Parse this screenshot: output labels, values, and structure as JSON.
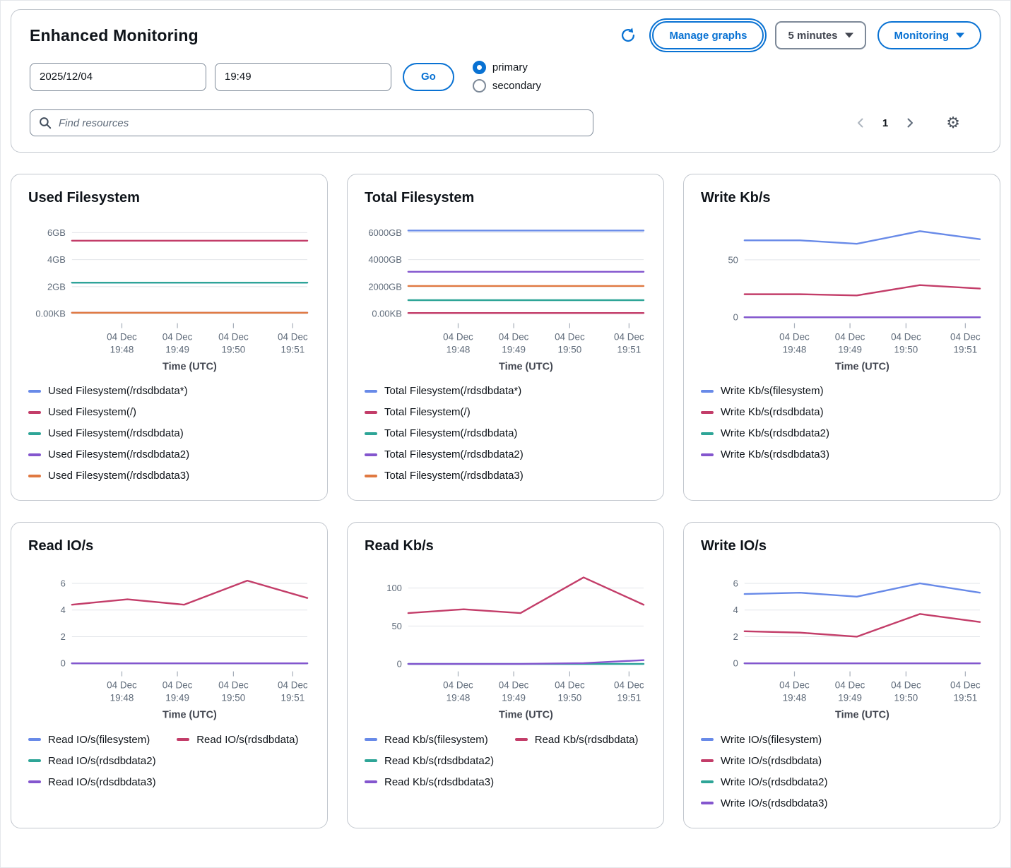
{
  "header": {
    "title": "Enhanced Monitoring",
    "manage_graphs_label": "Manage graphs",
    "interval_label": "5 minutes",
    "monitoring_label": "Monitoring",
    "date_value": "2025/12/04",
    "time_value": "19:49",
    "go_label": "Go",
    "radio_primary": "primary",
    "radio_secondary": "secondary",
    "search_placeholder": "Find resources",
    "page_number": "1"
  },
  "colors": {
    "accent": "#0972d3",
    "palette_blue": "#688ae8",
    "palette_red": "#c33d69",
    "palette_teal": "#2ea597",
    "palette_purple": "#8456ce",
    "palette_orange": "#e07941"
  },
  "chart_data": [
    {
      "type": "line",
      "title": "Used Filesystem",
      "xlabel": "Time (UTC)",
      "categories": [
        "04 Dec 19:48",
        "04 Dec 19:49",
        "04 Dec 19:50",
        "04 Dec 19:51"
      ],
      "ylim": [
        -0.6,
        6.7
      ],
      "yticks": [
        {
          "v": 0,
          "label": "0.00KB"
        },
        {
          "v": 2,
          "label": "2GB"
        },
        {
          "v": 4,
          "label": "4GB"
        },
        {
          "v": 6,
          "label": "6GB"
        }
      ],
      "grid": true,
      "legend_position": "bottom",
      "legend_pairs_first_row": false,
      "series": [
        {
          "name": "Used Filesystem(/rdsdbdata*)",
          "color": "#688ae8",
          "values": [
            2.3,
            2.3,
            2.3,
            2.3,
            2.3
          ]
        },
        {
          "name": "Used Filesystem(/)",
          "color": "#c33d69",
          "values": [
            5.4,
            5.4,
            5.4,
            5.4,
            5.4
          ]
        },
        {
          "name": "Used Filesystem(/rdsdbdata)",
          "color": "#2ea597",
          "values": [
            2.3,
            2.3,
            2.3,
            2.3,
            2.3
          ]
        },
        {
          "name": "Used Filesystem(/rdsdbdata2)",
          "color": "#8456ce",
          "values": [
            0.07,
            0.07,
            0.07,
            0.07,
            0.07
          ]
        },
        {
          "name": "Used Filesystem(/rdsdbdata3)",
          "color": "#e07941",
          "values": [
            0.07,
            0.07,
            0.07,
            0.07,
            0.07
          ]
        }
      ]
    },
    {
      "type": "line",
      "title": "Total Filesystem",
      "xlabel": "Time (UTC)",
      "categories": [
        "04 Dec 19:48",
        "04 Dec 19:49",
        "04 Dec 19:50",
        "04 Dec 19:51"
      ],
      "ylim": [
        -600,
        6700
      ],
      "yticks": [
        {
          "v": 0,
          "label": "0.00KB"
        },
        {
          "v": 2000,
          "label": "2000GB"
        },
        {
          "v": 4000,
          "label": "4000GB"
        },
        {
          "v": 6000,
          "label": "6000GB"
        }
      ],
      "grid": true,
      "legend_position": "bottom",
      "legend_pairs_first_row": false,
      "series": [
        {
          "name": "Total Filesystem(/rdsdbdata*)",
          "color": "#688ae8",
          "values": [
            6150,
            6150,
            6150,
            6150,
            6150
          ]
        },
        {
          "name": "Total Filesystem(/)",
          "color": "#c33d69",
          "values": [
            50,
            50,
            50,
            50,
            50
          ]
        },
        {
          "name": "Total Filesystem(/rdsdbdata)",
          "color": "#2ea597",
          "values": [
            1000,
            1000,
            1000,
            1000,
            1000
          ]
        },
        {
          "name": "Total Filesystem(/rdsdbdata2)",
          "color": "#8456ce",
          "values": [
            3100,
            3100,
            3100,
            3100,
            3100
          ]
        },
        {
          "name": "Total Filesystem(/rdsdbdata3)",
          "color": "#e07941",
          "values": [
            2050,
            2050,
            2050,
            2050,
            2050
          ]
        }
      ]
    },
    {
      "type": "line",
      "title": "Write Kb/s",
      "xlabel": "Time (UTC)",
      "categories": [
        "04 Dec 19:48",
        "04 Dec 19:49",
        "04 Dec 19:50",
        "04 Dec 19:51"
      ],
      "ylim": [
        -4,
        82
      ],
      "yticks": [
        {
          "v": 0,
          "label": "0"
        },
        {
          "v": 50,
          "label": "50"
        }
      ],
      "grid": true,
      "legend_position": "bottom",
      "legend_pairs_first_row": false,
      "series": [
        {
          "name": "Write Kb/s(filesystem)",
          "color": "#688ae8",
          "values": [
            67,
            67,
            64,
            75,
            68
          ]
        },
        {
          "name": "Write Kb/s(rdsdbdata)",
          "color": "#c33d69",
          "values": [
            20,
            20,
            19,
            28,
            25
          ]
        },
        {
          "name": "Write Kb/s(rdsdbdata2)",
          "color": "#2ea597",
          "values": [
            0,
            0,
            0,
            0,
            0
          ]
        },
        {
          "name": "Write Kb/s(rdsdbdata3)",
          "color": "#8456ce",
          "values": [
            0,
            0,
            0,
            0,
            0
          ]
        }
      ]
    },
    {
      "type": "line",
      "title": "Read IO/s",
      "xlabel": "Time (UTC)",
      "categories": [
        "04 Dec 19:48",
        "04 Dec 19:49",
        "04 Dec 19:50",
        "04 Dec 19:51"
      ],
      "ylim": [
        -0.5,
        6.9
      ],
      "yticks": [
        {
          "v": 0,
          "label": "0"
        },
        {
          "v": 2,
          "label": "2"
        },
        {
          "v": 4,
          "label": "4"
        },
        {
          "v": 6,
          "label": "6"
        }
      ],
      "grid": true,
      "legend_position": "bottom",
      "legend_pairs_first_row": true,
      "series": [
        {
          "name": "Read IO/s(filesystem)",
          "color": "#688ae8",
          "values": [
            0,
            0,
            0,
            0,
            0
          ]
        },
        {
          "name": "Read IO/s(rdsdbdata)",
          "color": "#c33d69",
          "values": [
            4.4,
            4.8,
            4.4,
            6.2,
            4.9
          ]
        },
        {
          "name": "Read IO/s(rdsdbdata2)",
          "color": "#2ea597",
          "values": [
            0,
            0,
            0,
            0,
            0
          ]
        },
        {
          "name": "Read IO/s(rdsdbdata3)",
          "color": "#8456ce",
          "values": [
            0,
            0,
            0,
            0,
            0
          ]
        }
      ]
    },
    {
      "type": "line",
      "title": "Read Kb/s",
      "xlabel": "Time (UTC)",
      "categories": [
        "04 Dec 19:48",
        "04 Dec 19:49",
        "04 Dec 19:50",
        "04 Dec 19:51"
      ],
      "ylim": [
        -8,
        122
      ],
      "yticks": [
        {
          "v": 0,
          "label": "0"
        },
        {
          "v": 50,
          "label": "50"
        },
        {
          "v": 100,
          "label": "100"
        }
      ],
      "grid": true,
      "legend_position": "bottom",
      "legend_pairs_first_row": true,
      "series": [
        {
          "name": "Read Kb/s(filesystem)",
          "color": "#688ae8",
          "values": [
            0,
            0,
            0,
            0,
            0
          ]
        },
        {
          "name": "Read Kb/s(rdsdbdata)",
          "color": "#c33d69",
          "values": [
            67,
            72,
            67,
            114,
            78
          ]
        },
        {
          "name": "Read Kb/s(rdsdbdata2)",
          "color": "#2ea597",
          "values": [
            0,
            0,
            0,
            0,
            0
          ]
        },
        {
          "name": "Read Kb/s(rdsdbdata3)",
          "color": "#8456ce",
          "values": [
            0,
            0,
            0,
            1,
            5
          ]
        }
      ]
    },
    {
      "type": "line",
      "title": "Write IO/s",
      "xlabel": "Time (UTC)",
      "categories": [
        "04 Dec 19:48",
        "04 Dec 19:49",
        "04 Dec 19:50",
        "04 Dec 19:51"
      ],
      "ylim": [
        -0.5,
        6.9
      ],
      "yticks": [
        {
          "v": 0,
          "label": "0"
        },
        {
          "v": 2,
          "label": "2"
        },
        {
          "v": 4,
          "label": "4"
        },
        {
          "v": 6,
          "label": "6"
        }
      ],
      "grid": true,
      "legend_position": "bottom",
      "legend_pairs_first_row": false,
      "series": [
        {
          "name": "Write IO/s(filesystem)",
          "color": "#688ae8",
          "values": [
            5.2,
            5.3,
            5.0,
            6.0,
            5.3
          ]
        },
        {
          "name": "Write IO/s(rdsdbdata)",
          "color": "#c33d69",
          "values": [
            2.4,
            2.3,
            2.0,
            3.7,
            3.1
          ]
        },
        {
          "name": "Write IO/s(rdsdbdata2)",
          "color": "#2ea597",
          "values": [
            0,
            0,
            0,
            0,
            0
          ]
        },
        {
          "name": "Write IO/s(rdsdbdata3)",
          "color": "#8456ce",
          "values": [
            0,
            0,
            0,
            0,
            0
          ]
        }
      ]
    }
  ]
}
